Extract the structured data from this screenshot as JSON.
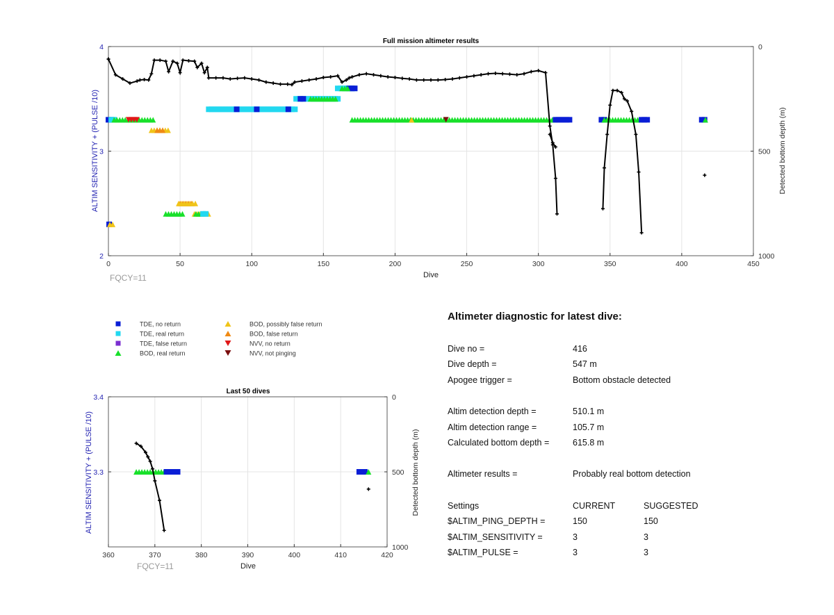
{
  "colors": {
    "tde_no_return": "#0a1ed6",
    "tde_real_return": "#22d8f0",
    "tde_false_return": "#7b2fd0",
    "bod_real_return": "#18e02a",
    "bod_possibly_false": "#f0c419",
    "bod_false_return": "#f08a14",
    "nvv_no_return": "#e01818",
    "nvv_not_pinging": "#7a0e0e",
    "depth_line": "#000000",
    "left_axis": "#1f1fb0",
    "fqcy": "#999999"
  },
  "legend": [
    {
      "label": "TDE, no return",
      "marker": "square",
      "color_key": "tde_no_return"
    },
    {
      "label": "TDE, real return",
      "marker": "square",
      "color_key": "tde_real_return"
    },
    {
      "label": "TDE, false return",
      "marker": "square",
      "color_key": "tde_false_return"
    },
    {
      "label": "BOD, real return",
      "marker": "triangle-up",
      "color_key": "bod_real_return"
    },
    {
      "label": "BOD, possibly false return",
      "marker": "triangle-up",
      "color_key": "bod_possibly_false"
    },
    {
      "label": "BOD, false return",
      "marker": "triangle-up",
      "color_key": "bod_false_return"
    },
    {
      "label": "NVV, no return",
      "marker": "triangle-down",
      "color_key": "nvv_no_return"
    },
    {
      "label": "NVV, not pinging",
      "marker": "triangle-down",
      "color_key": "nvv_not_pinging"
    }
  ],
  "chart_data": [
    {
      "type": "scatter",
      "title": "Full mission altimeter results",
      "xlabel": "Dive",
      "ylabel": "ALTIM SENSITIVITY + (PULSE /10)",
      "y2label": "Detected bottom depth (m)",
      "xlim": [
        0,
        450
      ],
      "ylim": [
        2,
        4
      ],
      "y2lim": [
        0,
        1000
      ],
      "y2_reversed": true,
      "xticks": [
        0,
        50,
        100,
        150,
        200,
        250,
        300,
        350,
        400,
        450
      ],
      "yticks": [
        2,
        3,
        4
      ],
      "y2ticks": [
        0,
        500,
        1000
      ],
      "grid": true,
      "annotation": "FQCY=11",
      "marker_runs": [
        {
          "kind": "tde_no_return",
          "x_start": 0,
          "x_end": 2,
          "y": 3.3
        },
        {
          "kind": "tde_real_return",
          "x_start": 2,
          "x_end": 4,
          "y": 3.3
        },
        {
          "kind": "bod_real_return",
          "x_start": 4,
          "x_end": 32,
          "y": 3.3
        },
        {
          "kind": "nvv_no_return",
          "x_start": 14,
          "x_end": 20,
          "y": 3.3
        },
        {
          "kind": "bod_possibly_false",
          "x_start": 30,
          "x_end": 42,
          "y": 3.2
        },
        {
          "kind": "bod_false_return",
          "x_start": 34,
          "x_end": 39,
          "y": 3.2
        },
        {
          "kind": "tde_real_return",
          "x_start": 70,
          "x_end": 132,
          "y": 3.4
        },
        {
          "kind": "tde_no_return",
          "x_start": 89,
          "x_end": 90,
          "y": 3.4
        },
        {
          "kind": "tde_no_return",
          "x_start": 103,
          "x_end": 104,
          "y": 3.4
        },
        {
          "kind": "tde_no_return",
          "x_start": 125,
          "x_end": 126,
          "y": 3.4
        },
        {
          "kind": "tde_real_return",
          "x_start": 131,
          "x_end": 161,
          "y": 3.5
        },
        {
          "kind": "tde_no_return",
          "x_start": 134,
          "x_end": 137,
          "y": 3.5
        },
        {
          "kind": "bod_real_return",
          "x_start": 141,
          "x_end": 159,
          "y": 3.5
        },
        {
          "kind": "tde_real_return",
          "x_start": 160,
          "x_end": 172,
          "y": 3.6
        },
        {
          "kind": "tde_no_return",
          "x_start": 168,
          "x_end": 172,
          "y": 3.6
        },
        {
          "kind": "bod_real_return",
          "x_start": 163,
          "x_end": 168,
          "y": 3.6
        },
        {
          "kind": "bod_real_return",
          "x_start": 170,
          "x_end": 312,
          "y": 3.3
        },
        {
          "kind": "nvv_not_pinging",
          "x_start": 235,
          "x_end": 236,
          "y": 3.3
        },
        {
          "kind": "bod_possibly_false",
          "x_start": 211,
          "x_end": 212,
          "y": 3.3
        },
        {
          "kind": "tde_no_return",
          "x_start": 312,
          "x_end": 322,
          "y": 3.3
        },
        {
          "kind": "tde_no_return",
          "x_start": 344,
          "x_end": 346,
          "y": 3.3
        },
        {
          "kind": "bod_real_return",
          "x_start": 346,
          "x_end": 372,
          "y": 3.3
        },
        {
          "kind": "tde_no_return",
          "x_start": 372,
          "x_end": 376,
          "y": 3.3
        },
        {
          "kind": "tde_no_return",
          "x_start": 414,
          "x_end": 416,
          "y": 3.3
        },
        {
          "kind": "bod_real_return",
          "x_start": 416,
          "x_end": 417,
          "y": 3.3
        },
        {
          "kind": "bod_false_return",
          "x_start": 50,
          "x_end": 58,
          "y": 2.5
        },
        {
          "kind": "bod_possibly_false",
          "x_start": 49,
          "x_end": 61,
          "y": 2.5
        },
        {
          "kind": "bod_real_return",
          "x_start": 40,
          "x_end": 52,
          "y": 2.4
        },
        {
          "kind": "bod_possibly_false",
          "x_start": 60,
          "x_end": 70,
          "y": 2.4
        },
        {
          "kind": "bod_real_return",
          "x_start": 61,
          "x_end": 66,
          "y": 2.4
        },
        {
          "kind": "tde_real_return",
          "x_start": 66,
          "x_end": 68,
          "y": 2.4
        },
        {
          "kind": "tde_no_return",
          "x_start": 0,
          "x_end": 1,
          "y": 2.3
        },
        {
          "kind": "bod_possibly_false",
          "x_start": 1,
          "x_end": 4,
          "y": 2.3
        }
      ],
      "depth_series": [
        {
          "name": "",
          "points": [
            [
              0,
              60
            ],
            [
              5,
              135
            ],
            [
              10,
              155
            ],
            [
              15,
              175
            ],
            [
              20,
              165
            ],
            [
              22,
              160
            ],
            [
              25,
              158
            ],
            [
              28,
              160
            ],
            [
              30,
              130
            ],
            [
              32,
              65
            ],
            [
              36,
              65
            ],
            [
              40,
              70
            ],
            [
              42,
              120
            ],
            [
              45,
              70
            ],
            [
              48,
              80
            ],
            [
              50,
              125
            ],
            [
              52,
              65
            ],
            [
              56,
              68
            ],
            [
              60,
              70
            ],
            [
              62,
              100
            ],
            [
              65,
              80
            ],
            [
              67,
              125
            ],
            [
              69,
              100
            ],
            [
              70,
              150
            ],
            [
              75,
              150
            ],
            [
              80,
              150
            ],
            [
              85,
              155
            ],
            [
              90,
              152
            ],
            [
              95,
              150
            ],
            [
              100,
              155
            ],
            [
              105,
              160
            ],
            [
              110,
              170
            ],
            [
              115,
              175
            ],
            [
              120,
              180
            ],
            [
              125,
              180
            ],
            [
              128,
              182
            ],
            [
              130,
              170
            ],
            [
              135,
              165
            ],
            [
              140,
              160
            ],
            [
              145,
              155
            ],
            [
              150,
              148
            ],
            [
              155,
              145
            ],
            [
              160,
              140
            ],
            [
              163,
              170
            ],
            [
              166,
              160
            ],
            [
              168,
              150
            ],
            [
              170,
              145
            ],
            [
              175,
              135
            ],
            [
              180,
              130
            ],
            [
              185,
              135
            ],
            [
              190,
              140
            ],
            [
              195,
              145
            ],
            [
              200,
              148
            ],
            [
              205,
              152
            ],
            [
              210,
              155
            ],
            [
              215,
              160
            ],
            [
              220,
              160
            ],
            [
              225,
              160
            ],
            [
              230,
              160
            ],
            [
              235,
              158
            ],
            [
              240,
              155
            ],
            [
              245,
              150
            ],
            [
              250,
              145
            ],
            [
              255,
              140
            ],
            [
              260,
              135
            ],
            [
              265,
              130
            ],
            [
              270,
              128
            ],
            [
              275,
              130
            ],
            [
              280,
              132
            ],
            [
              285,
              135
            ],
            [
              290,
              130
            ],
            [
              295,
              120
            ],
            [
              300,
              115
            ],
            [
              305,
              125
            ],
            [
              308,
              380
            ],
            [
              310,
              470
            ],
            [
              312,
              630
            ],
            [
              313,
              800
            ]
          ]
        },
        {
          "name": "",
          "points": [
            [
              308,
              420
            ],
            [
              310,
              460
            ],
            [
              312,
              480
            ]
          ]
        },
        {
          "name": "",
          "points": [
            [
              345,
              775
            ],
            [
              346,
              580
            ],
            [
              348,
              420
            ],
            [
              350,
              280
            ],
            [
              352,
              210
            ],
            [
              355,
              210
            ],
            [
              358,
              220
            ],
            [
              360,
              250
            ],
            [
              362,
              260
            ],
            [
              365,
              310
            ],
            [
              368,
              420
            ],
            [
              370,
              600
            ],
            [
              372,
              890
            ]
          ]
        },
        {
          "name": "",
          "points": [
            [
              0,
              60
            ]
          ]
        },
        {
          "name": "",
          "points": [
            [
              416,
              615
            ]
          ]
        }
      ]
    },
    {
      "type": "scatter",
      "title": "Last 50 dives",
      "xlabel": "Dive",
      "ylabel": "ALTIM SENSITIVITY + (PULSE /10)",
      "y2label": "Detected bottom depth (m)",
      "xlim": [
        360,
        420
      ],
      "ylim": [
        3.2,
        3.4
      ],
      "y2lim": [
        0,
        1000
      ],
      "y2_reversed": true,
      "xticks": [
        360,
        370,
        380,
        390,
        400,
        410,
        420
      ],
      "yticks": [
        3.3,
        3.4
      ],
      "y2ticks": [
        0,
        500,
        1000
      ],
      "grid": true,
      "annotation": "FQCY=11",
      "marker_runs": [
        {
          "kind": "bod_real_return",
          "x_start": 366,
          "x_end": 372,
          "y": 3.3
        },
        {
          "kind": "tde_no_return",
          "x_start": 372.5,
          "x_end": 375,
          "y": 3.3
        },
        {
          "kind": "tde_no_return",
          "x_start": 414,
          "x_end": 415.5,
          "y": 3.3
        },
        {
          "kind": "bod_real_return",
          "x_start": 416,
          "x_end": 416,
          "y": 3.3
        }
      ],
      "depth_series": [
        {
          "name": "",
          "points": [
            [
              366,
              310
            ],
            [
              367,
              330
            ],
            [
              368,
              370
            ],
            [
              368.5,
              400
            ],
            [
              369,
              430
            ],
            [
              369.5,
              480
            ],
            [
              370,
              560
            ],
            [
              371,
              690
            ],
            [
              372,
              890
            ]
          ]
        },
        {
          "name": "",
          "points": [
            [
              416,
              615
            ]
          ]
        }
      ]
    }
  ],
  "diagnostic": {
    "title": "Altimeter diagnostic for latest dive:",
    "rows": [
      {
        "label": "Dive no =",
        "value": "416"
      },
      {
        "label": "Dive depth =",
        "value": "547 m"
      },
      {
        "label": "Apogee trigger =",
        "value": "Bottom obstacle detected"
      },
      {
        "label": "Altim detection depth =",
        "value": "510.1 m"
      },
      {
        "label": "Altim detection range =",
        "value": "105.7 m"
      },
      {
        "label": "Calculated bottom depth =",
        "value": "615.8 m"
      },
      {
        "label": "Altimeter results =",
        "value": "Probably real bottom detection"
      }
    ],
    "settings_header": {
      "label": "Settings",
      "current": "CURRENT",
      "suggested": "SUGGESTED"
    },
    "settings": [
      {
        "label": "$ALTIM_PING_DEPTH =",
        "current": "150",
        "suggested": "150"
      },
      {
        "label": "$ALTIM_SENSITIVITY =",
        "current": "3",
        "suggested": "3"
      },
      {
        "label": "$ALTIM_PULSE =",
        "current": "3",
        "suggested": "3"
      }
    ]
  }
}
